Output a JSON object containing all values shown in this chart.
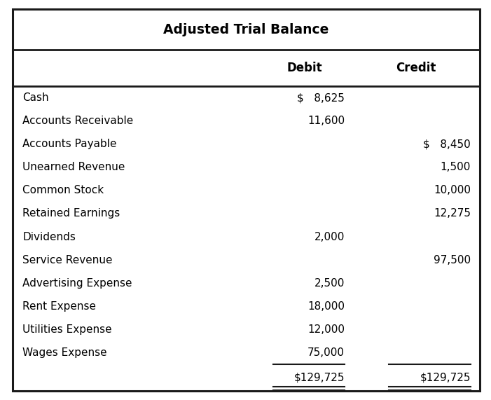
{
  "title": "Adjusted Trial Balance",
  "rows": [
    {
      "account": "Cash",
      "debit": "$   8,625",
      "credit": ""
    },
    {
      "account": "Accounts Receivable",
      "debit": "11,600",
      "credit": ""
    },
    {
      "account": "Accounts Payable",
      "debit": "",
      "credit": "$   8,450"
    },
    {
      "account": "Unearned Revenue",
      "debit": "",
      "credit": "1,500"
    },
    {
      "account": "Common Stock",
      "debit": "",
      "credit": "10,000"
    },
    {
      "account": "Retained Earnings",
      "debit": "",
      "credit": "12,275"
    },
    {
      "account": "Dividends",
      "debit": "2,000",
      "credit": ""
    },
    {
      "account": "Service Revenue",
      "debit": "",
      "credit": "97,500"
    },
    {
      "account": "Advertising Expense",
      "debit": "2,500",
      "credit": ""
    },
    {
      "account": "Rent Expense",
      "debit": "18,000",
      "credit": ""
    },
    {
      "account": "Utilities Expense",
      "debit": "12,000",
      "credit": ""
    },
    {
      "account": "Wages Expense",
      "debit": "75,000",
      "credit": ""
    }
  ],
  "total_debit": "$129,725",
  "total_credit": "$129,725",
  "bg_color": "#ffffff",
  "border_color": "#1a1a1a",
  "font_size": 11.0,
  "header_font_size": 12.0,
  "title_font_size": 13.5
}
